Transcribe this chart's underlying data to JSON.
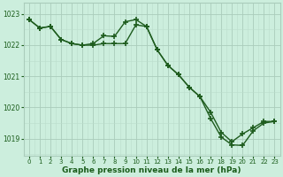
{
  "line1_x": [
    0,
    1,
    2,
    3,
    4,
    5,
    6,
    7,
    8,
    9,
    10,
    11,
    12,
    13,
    14,
    15,
    16,
    17,
    18,
    19,
    20,
    21,
    22,
    23
  ],
  "line1_y": [
    1022.82,
    1022.55,
    1022.6,
    1022.18,
    1022.05,
    1022.0,
    1022.0,
    1022.05,
    1022.05,
    1022.05,
    1022.65,
    1022.6,
    1021.85,
    1021.35,
    1021.05,
    1020.65,
    1020.35,
    1019.85,
    1019.2,
    1018.9,
    1019.15,
    1019.35,
    1019.55,
    1019.55
  ],
  "line2_x": [
    0,
    1,
    2,
    3,
    4,
    5,
    6,
    7,
    8,
    9,
    10,
    11,
    12,
    13,
    14,
    15,
    16,
    17,
    18,
    19,
    20,
    21,
    22,
    23
  ],
  "line2_y": [
    1022.82,
    1022.55,
    1022.6,
    1022.18,
    1022.05,
    1022.0,
    1022.05,
    1022.3,
    1022.28,
    1022.75,
    1022.82,
    1022.6,
    1021.85,
    1021.35,
    1021.05,
    1020.65,
    1020.35,
    1019.65,
    1019.05,
    1018.8,
    1018.78,
    1019.25,
    1019.5,
    1019.55
  ],
  "line_color": "#1e5c1e",
  "marker": "+",
  "markersize": 4.5,
  "linewidth": 1.0,
  "bg_color": "#cceedd",
  "grid_major_color": "#aaccbb",
  "grid_minor_color": "#bbddcc",
  "text_color": "#1a5c1a",
  "xlabel": "Graphe pression niveau de la mer (hPa)",
  "ylim_min": 1018.45,
  "ylim_max": 1023.35,
  "yticks": [
    1019,
    1020,
    1021,
    1022,
    1023
  ],
  "xticks": [
    0,
    1,
    2,
    3,
    4,
    5,
    6,
    7,
    8,
    9,
    10,
    11,
    12,
    13,
    14,
    15,
    16,
    17,
    18,
    19,
    20,
    21,
    22,
    23
  ]
}
